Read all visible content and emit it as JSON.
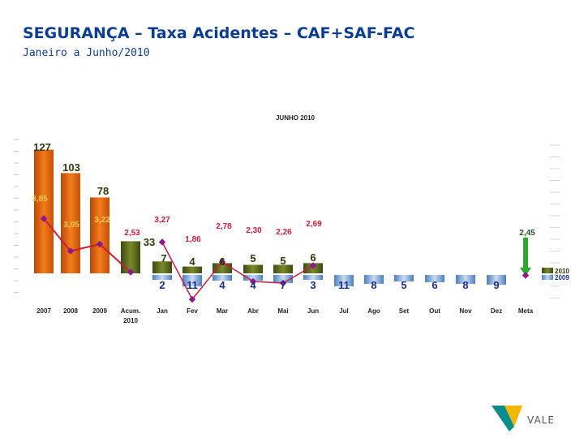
{
  "header": {
    "title": "SEGURANÇA – Taxa Acidentes – CAF+SAF-FAC",
    "subtitle": "Janeiro a Junho/2010"
  },
  "logo": {
    "text": "VALE",
    "colors": [
      "#0b8c8c",
      "#f2b705"
    ]
  },
  "colors": {
    "title": "#0b3d91",
    "bar_orange": "#e8650a",
    "bar_olive": "#5a6b1f",
    "bar_blue": "#7fa6d6",
    "line": "#c81e3c",
    "marker": "#8a1a8a",
    "arrow": "#2ea82e"
  },
  "chart_data": {
    "type": "bar",
    "title": "JUNHO 2010",
    "categories": [
      "2007",
      "2008",
      "2009",
      "Acum. 2010",
      "Jan",
      "Fev",
      "Mar",
      "Abr",
      "Mai",
      "Jun",
      "Jul",
      "Ago",
      "Set",
      "Out",
      "Nov",
      "Dez",
      "Meta"
    ],
    "series": [
      {
        "name": "2010",
        "type": "bar",
        "values": [
          127,
          103,
          78,
          33,
          7,
          4,
          6,
          5,
          5,
          6,
          null,
          null,
          null,
          null,
          null,
          null,
          null
        ]
      },
      {
        "name": "2009",
        "type": "bar-below",
        "values": [
          null,
          null,
          null,
          null,
          2,
          11,
          4,
          4,
          7,
          3,
          11,
          8,
          5,
          6,
          8,
          9,
          null
        ]
      },
      {
        "name": "rate",
        "type": "line",
        "values": [
          3.85,
          3.05,
          3.22,
          2.53,
          3.27,
          1.86,
          2.78,
          2.3,
          2.26,
          2.69,
          null,
          null,
          null,
          null,
          null,
          null,
          2.45
        ]
      }
    ],
    "value_labels": {
      "bar_top": [
        "127",
        "103",
        "78",
        "33",
        "7",
        "4",
        "6",
        "5",
        "5",
        "6"
      ],
      "bar_below": [
        "2",
        "11",
        "4",
        "4",
        "7",
        "3",
        "11",
        "8",
        "5",
        "6",
        "8",
        "9"
      ],
      "rate": [
        "3,85",
        "3,05",
        "3,22",
        "2,53",
        "3,27",
        "1,86",
        "2,78",
        "2,30",
        "2,26",
        "2,69",
        "2,45"
      ]
    },
    "legend": [
      "2010",
      "2009"
    ],
    "legend_position": "right"
  }
}
